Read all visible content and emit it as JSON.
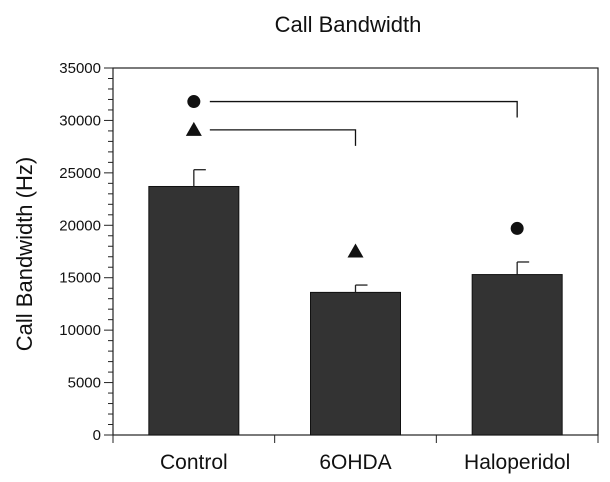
{
  "chart_data": {
    "type": "bar",
    "title": "Call Bandwidth",
    "xlabel": "",
    "ylabel": "Call Bandwidth (Hz)",
    "categories": [
      "Control",
      "6OHDA",
      "Haloperidol"
    ],
    "values": [
      23700,
      13600,
      15300
    ],
    "error_upper": [
      1600,
      700,
      1200
    ],
    "ylim": [
      0,
      35000
    ],
    "yticks": [
      0,
      5000,
      10000,
      15000,
      20000,
      25000,
      30000,
      35000
    ],
    "ytick_labels": [
      "0",
      "5000",
      "10000",
      "15000",
      "20000",
      "25000",
      "30000",
      "35000"
    ],
    "grid": false,
    "bar_color": "#333333",
    "significance": [
      {
        "marker": "circle",
        "from": "Control",
        "to": "Haloperidol",
        "y": 31800
      },
      {
        "marker": "triangle",
        "from": "Control",
        "to": "6OHDA",
        "y": 29100
      }
    ]
  }
}
